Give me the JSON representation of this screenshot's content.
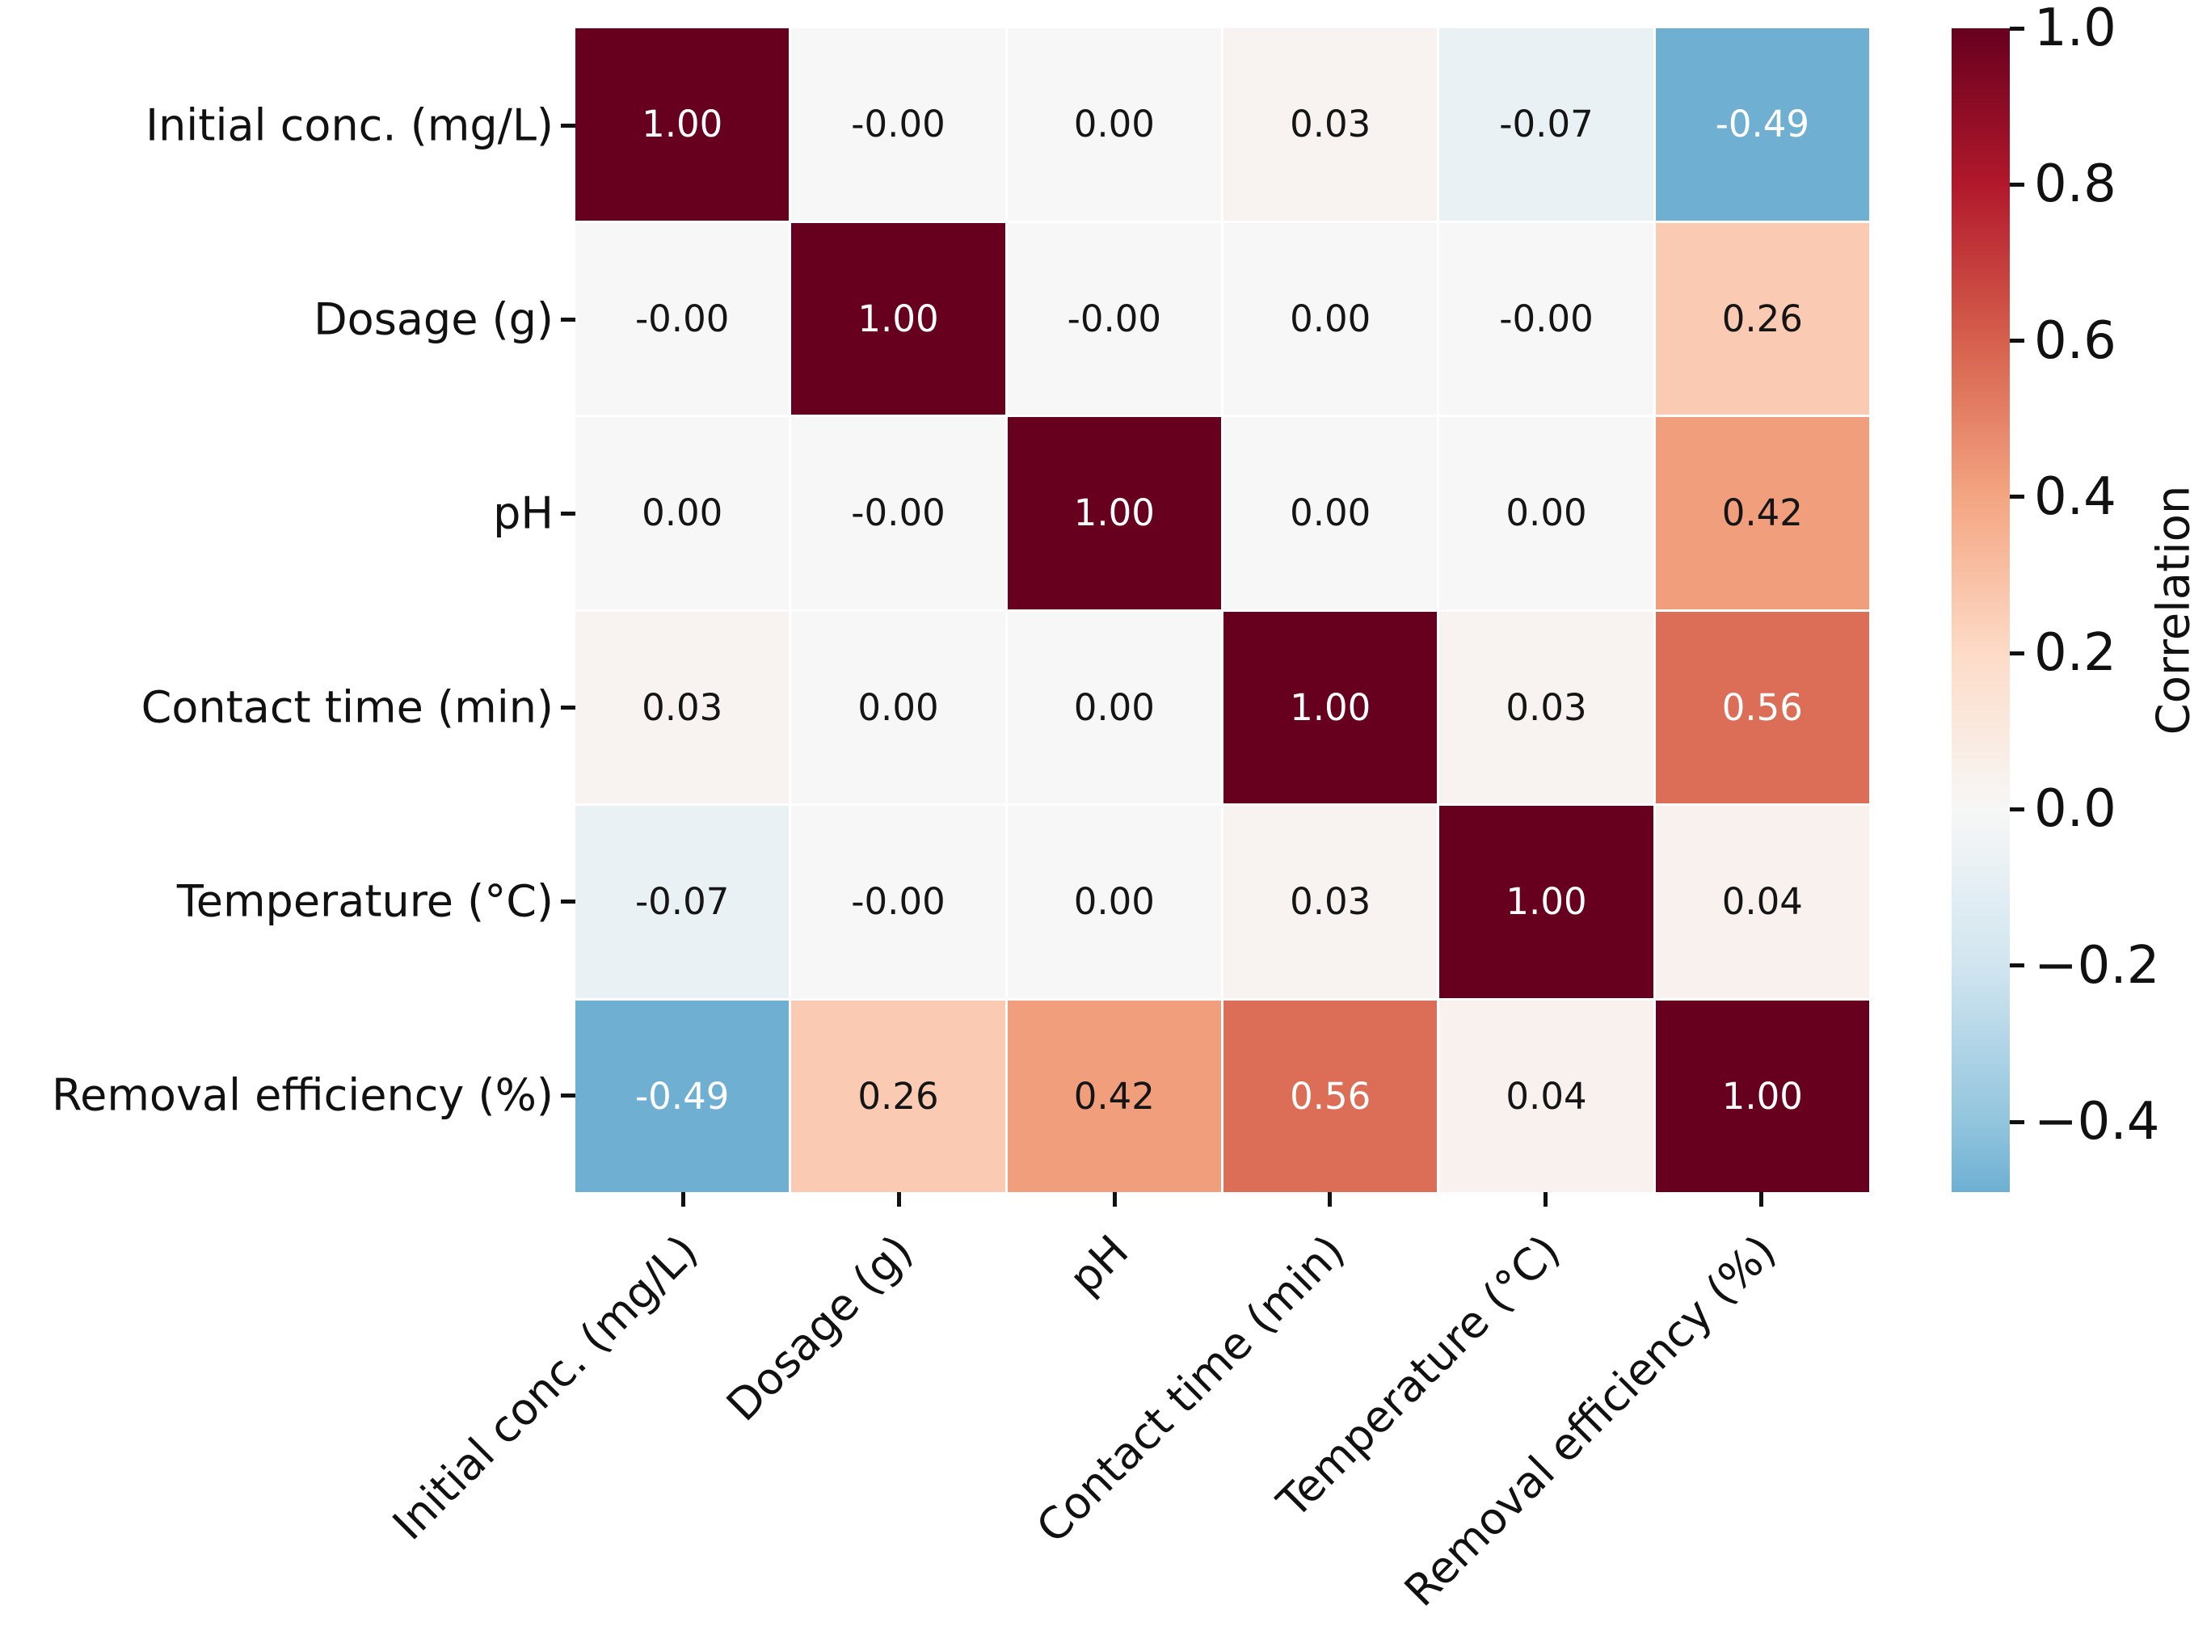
{
  "chart_data": {
    "type": "heatmap",
    "title": "",
    "variables": [
      "Initial conc. (mg/L)",
      "Dosage (g)",
      "pH",
      "Contact time (min)",
      "Temperature (°C)",
      "Removal efficiency (%)"
    ],
    "matrix_labels": [
      [
        "1.00",
        "-0.00",
        "0.00",
        "0.03",
        "-0.07",
        "-0.49"
      ],
      [
        "-0.00",
        "1.00",
        "-0.00",
        "0.00",
        "-0.00",
        "0.26"
      ],
      [
        "0.00",
        "-0.00",
        "1.00",
        "0.00",
        "0.00",
        "0.42"
      ],
      [
        "0.03",
        "0.00",
        "0.00",
        "1.00",
        "0.03",
        "0.56"
      ],
      [
        "-0.07",
        "-0.00",
        "0.00",
        "0.03",
        "1.00",
        "0.04"
      ],
      [
        "-0.49",
        "0.26",
        "0.42",
        "0.56",
        "0.04",
        "1.00"
      ]
    ],
    "matrix_values": [
      [
        1.0,
        0.0,
        0.0,
        0.03,
        -0.07,
        -0.49
      ],
      [
        0.0,
        1.0,
        0.0,
        0.0,
        0.0,
        0.26
      ],
      [
        0.0,
        0.0,
        1.0,
        0.0,
        0.0,
        0.42
      ],
      [
        0.03,
        0.0,
        0.0,
        1.0,
        0.03,
        0.56
      ],
      [
        -0.07,
        0.0,
        0.0,
        0.03,
        1.0,
        0.04
      ],
      [
        -0.49,
        0.26,
        0.42,
        0.56,
        0.04,
        1.0
      ]
    ],
    "colormap": {
      "name": "RdBu_r",
      "center": 0,
      "vmin": -0.49,
      "vmax": 1.0,
      "anchors": [
        "#053061",
        "#2166ac",
        "#4393c3",
        "#92c5de",
        "#d1e5f0",
        "#f7f7f7",
        "#fddbc7",
        "#f4a582",
        "#d6604d",
        "#b2182b",
        "#67001f"
      ]
    },
    "colorbar": {
      "label": "Correlation",
      "ticks": [
        "1.0",
        "0.8",
        "0.6",
        "0.4",
        "0.2",
        "0.0",
        "−0.2",
        "−0.4"
      ],
      "tick_values": [
        1.0,
        0.8,
        0.6,
        0.4,
        0.2,
        0.0,
        -0.2,
        -0.4
      ]
    },
    "grid": false,
    "gridline_color": "#ffffff",
    "annotation_format": ".2f",
    "legend_position": "right-colorbar"
  }
}
